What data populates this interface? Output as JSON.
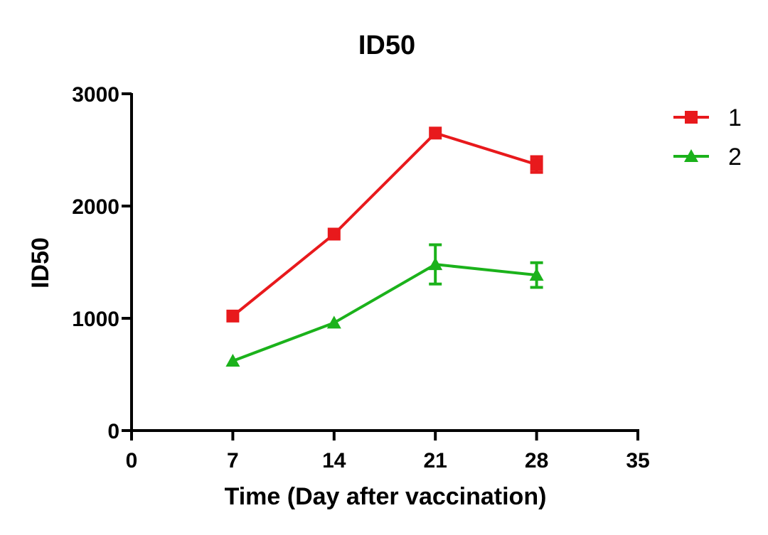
{
  "chart_data": {
    "type": "line",
    "title": "ID50",
    "xlabel": "Time (Day after vaccination)",
    "ylabel": "ID50",
    "xlim": [
      0,
      35
    ],
    "ylim": [
      0,
      3000
    ],
    "xticks": [
      0,
      7,
      14,
      21,
      28,
      35
    ],
    "yticks": [
      0,
      1000,
      2000,
      3000
    ],
    "xtick_labels": [
      "0",
      "7",
      "14",
      "21",
      "28",
      "35"
    ],
    "ytick_labels": [
      "0",
      "1000",
      "2000",
      "3000"
    ],
    "grid": false,
    "legend_position": "top-right",
    "series": [
      {
        "name": "1",
        "color": "#e8191c",
        "marker": "square",
        "x": [
          7,
          14,
          21,
          28
        ],
        "values": [
          1020,
          1750,
          2650,
          2370
        ],
        "error": [
          15,
          25,
          30,
          70
        ]
      },
      {
        "name": "2",
        "color": "#1bb21b",
        "marker": "triangle",
        "x": [
          7,
          14,
          21,
          28
        ],
        "values": [
          620,
          960,
          1480,
          1385
        ],
        "error": [
          15,
          20,
          175,
          110
        ]
      }
    ]
  }
}
